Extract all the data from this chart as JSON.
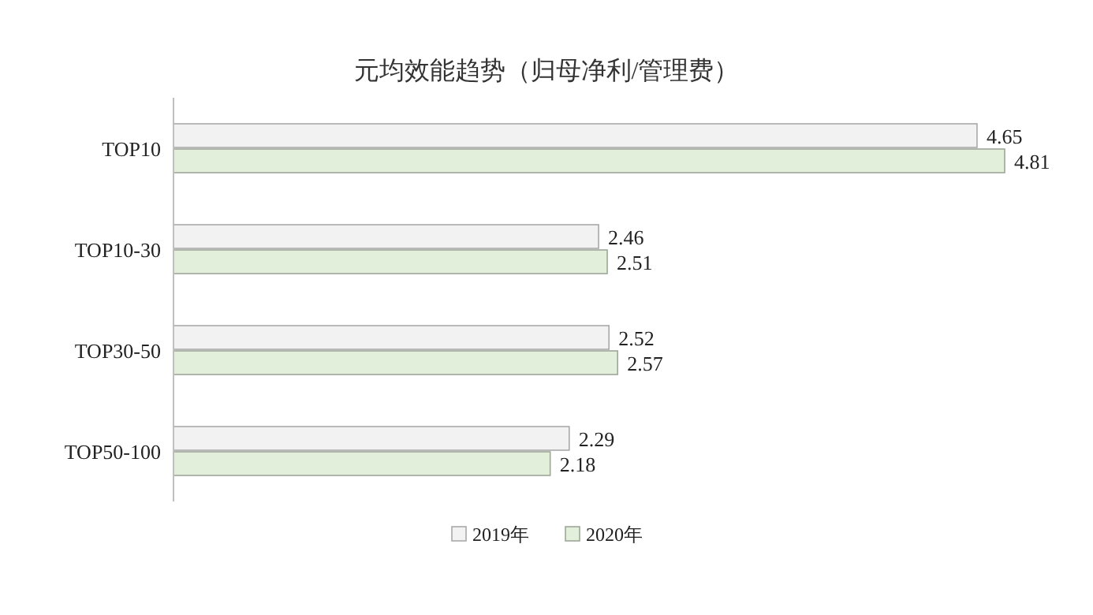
{
  "chart_data": {
    "type": "bar",
    "orientation": "horizontal",
    "title": "元均效能趋势（归母净利/管理费）",
    "categories": [
      "TOP10",
      "TOP10-30",
      "TOP30-50",
      "TOP50-100"
    ],
    "series": [
      {
        "name": "2019年",
        "color": "#f2f2f2",
        "values": [
          4.65,
          2.46,
          2.52,
          2.29
        ]
      },
      {
        "name": "2020年",
        "color": "#e2efda",
        "values": [
          4.81,
          2.51,
          2.57,
          2.18
        ]
      }
    ],
    "data_labels": true,
    "legend": "bottom"
  }
}
